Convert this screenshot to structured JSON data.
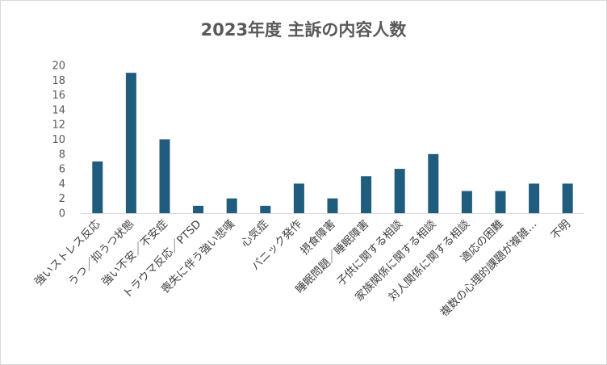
{
  "chart_data": {
    "type": "bar",
    "title": "2023年度 主訴の内容人数",
    "xlabel": "",
    "ylabel": "",
    "ylim": [
      0,
      20
    ],
    "yticks": [
      0,
      2,
      4,
      6,
      8,
      10,
      12,
      14,
      16,
      18,
      20
    ],
    "grid": false,
    "legend": "none",
    "bar_color": "#1F5C7E",
    "categories": [
      "強いストレス反応",
      "うつ／抑うつ状態",
      "強い不安／不安症",
      "トラウマ反応／PTSD",
      "喪失に伴う強い悲嘆",
      "心気症",
      "パニック発作",
      "摂食障害",
      "睡眠問題／睡眠障害",
      "子供に関する相談",
      "家族関係に関する相談",
      "対人関係に関する相談",
      "適応の困難",
      "複数の心理的課題が複雑…",
      "不明"
    ],
    "values": [
      7,
      19,
      10,
      1,
      2,
      1,
      4,
      2,
      5,
      6,
      8,
      3,
      3,
      4,
      4
    ]
  }
}
